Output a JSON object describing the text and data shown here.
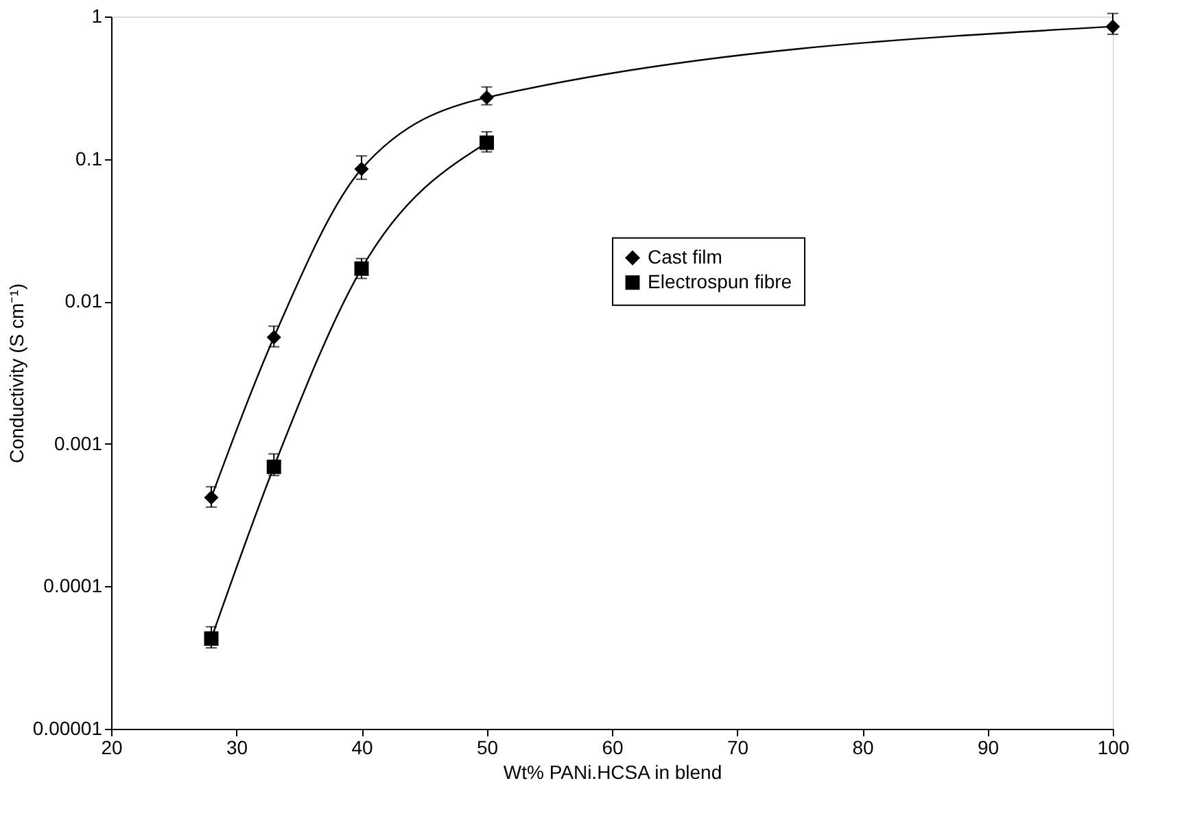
{
  "chart_data": {
    "type": "line",
    "xlabel": "Wt% PANi.HCSA in blend",
    "ylabel": "Conductivity (S cm⁻¹)",
    "log": "y",
    "xlim": [
      20,
      100
    ],
    "xticks": [
      20,
      30,
      40,
      50,
      60,
      70,
      80,
      90,
      100
    ],
    "ylim": [
      1e-05,
      1
    ],
    "yticks": [
      {
        "value": 1e-05,
        "label": "0.00001"
      },
      0.0001,
      0.001,
      0.01,
      0.1,
      1
    ],
    "grid": false,
    "legend": "center",
    "line_style": "solid",
    "series": [
      {
        "name": "Cast film",
        "color": "#000000",
        "marker": "diamond",
        "x": [
          28,
          33,
          40,
          50,
          100
        ],
        "values": [
          0.00042,
          0.0056,
          0.085,
          0.27,
          0.85
        ],
        "errors": [
          [
            0.00036,
            0.0005
          ],
          [
            0.0048,
            0.0067
          ],
          [
            0.072,
            0.105
          ],
          [
            0.24,
            0.32
          ],
          [
            0.75,
            1.05
          ]
        ]
      },
      {
        "name": "Electrospun fibre",
        "color": "#000000",
        "marker": "square",
        "x": [
          28,
          33,
          40,
          50
        ],
        "values": [
          4.3e-05,
          0.00069,
          0.017,
          0.13
        ],
        "errors": [
          [
            3.7e-05,
            5.2e-05
          ],
          [
            0.0006,
            0.00085
          ],
          [
            0.0145,
            0.02
          ],
          [
            0.112,
            0.155
          ]
        ]
      }
    ]
  }
}
